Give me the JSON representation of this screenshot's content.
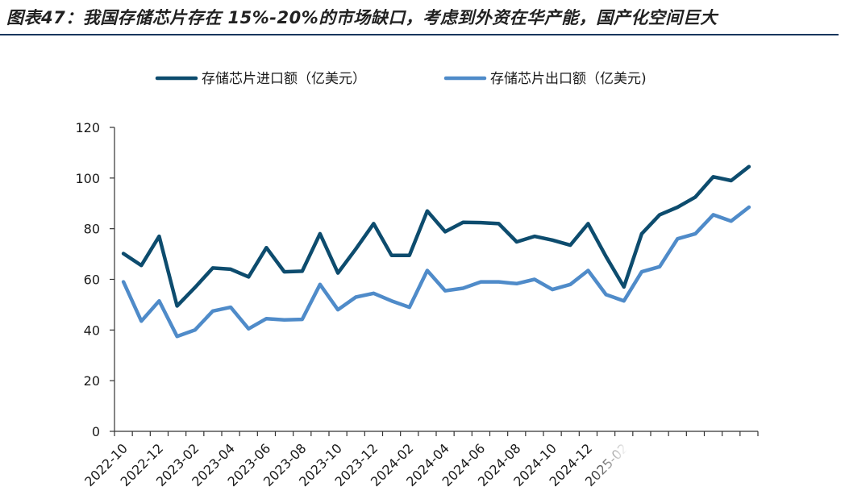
{
  "title": "图表47：我国存储芯片存在 15%-20%的市场缺口，考虑到外资在华产能，国产化空间巨大",
  "colors": {
    "import": "#0d4c6e",
    "export": "#4f8bc9",
    "title_rule": "#17365d"
  },
  "chart_data": {
    "type": "line",
    "x": [
      "2022-10",
      "2022-11",
      "2022-12",
      "2023-01",
      "2023-02",
      "2023-03",
      "2023-04",
      "2023-05",
      "2023-06",
      "2023-07",
      "2023-08",
      "2023-09",
      "2023-10",
      "2023-11",
      "2023-12",
      "2024-01",
      "2024-02",
      "2024-03",
      "2024-04",
      "2024-05",
      "2024-06",
      "2024-07",
      "2024-08",
      "2024-09",
      "2024-10",
      "2024-11",
      "2024-12",
      "2025-01",
      "2025-02",
      "2025-03",
      "2025-04",
      "2025-05",
      "2025-06",
      "2025-07",
      "2025-08",
      "2025-09"
    ],
    "x_tick_labels": [
      "2022-10",
      "2022-12",
      "2023-02",
      "2023-04",
      "2023-06",
      "2023-08",
      "2023-10",
      "2023-12",
      "2024-02",
      "2024-04",
      "2024-06",
      "2024-08",
      "2024-10",
      "2024-12",
      "2025-02"
    ],
    "series": [
      {
        "name": "存储芯片进口额（亿美元）",
        "values": [
          70.2,
          65.5,
          77.0,
          49.5,
          56.8,
          64.5,
          64.0,
          61.0,
          72.5,
          63.0,
          63.2,
          78.0,
          62.5,
          72.0,
          82.0,
          69.5,
          69.5,
          87.0,
          78.8,
          82.5,
          82.4,
          82.0,
          74.8,
          77.0,
          75.5,
          73.5,
          82.0,
          69.0,
          57.0,
          78.0,
          85.5,
          88.5,
          92.5,
          100.5,
          99.0,
          104.5
        ]
      },
      {
        "name": "存储芯片出口额（亿美元)",
        "values": [
          59.0,
          43.5,
          51.5,
          37.5,
          40.0,
          47.5,
          49.0,
          40.5,
          44.5,
          44.0,
          44.2,
          58.0,
          48.0,
          53.0,
          54.5,
          51.5,
          49.0,
          63.5,
          55.5,
          56.5,
          59.0,
          59.0,
          58.3,
          60.0,
          56.0,
          58.0,
          63.5,
          54.0,
          51.5,
          63.0,
          65.0,
          76.0,
          78.0,
          85.5,
          83.0,
          88.5
        ]
      }
    ],
    "ylim": [
      0,
      120
    ],
    "yticks": [
      0,
      20,
      40,
      60,
      80,
      100,
      120
    ],
    "xlabel": "",
    "ylabel": "",
    "legend_position": "top-center",
    "grid": false
  }
}
